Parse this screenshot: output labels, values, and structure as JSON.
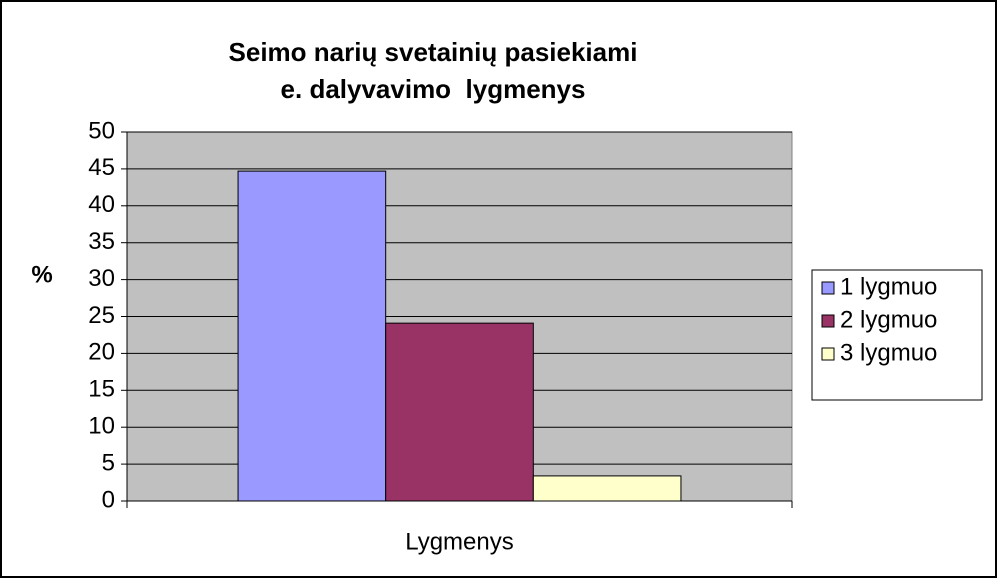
{
  "chart_data": {
    "type": "bar",
    "title": [
      "Seimo narių svetainių pasiekiami",
      "e. dalyvavimo  lygmenys"
    ],
    "y_label": "%",
    "categories": [
      "Lygmenys"
    ],
    "series": [
      {
        "name": "1 lygmuo",
        "color": "#9999ff",
        "values": [
          44.7
        ]
      },
      {
        "name": "2 lygmuo",
        "color": "#993366",
        "values": [
          24.1
        ]
      },
      {
        "name": "3 lygmuo",
        "color": "#ffffcc",
        "values": [
          3.4
        ]
      }
    ],
    "ylim": [
      0,
      50
    ],
    "yticks": [
      0,
      5,
      10,
      15,
      20,
      25,
      30,
      35,
      40,
      45,
      50
    ],
    "grid": true,
    "legend": "right"
  }
}
